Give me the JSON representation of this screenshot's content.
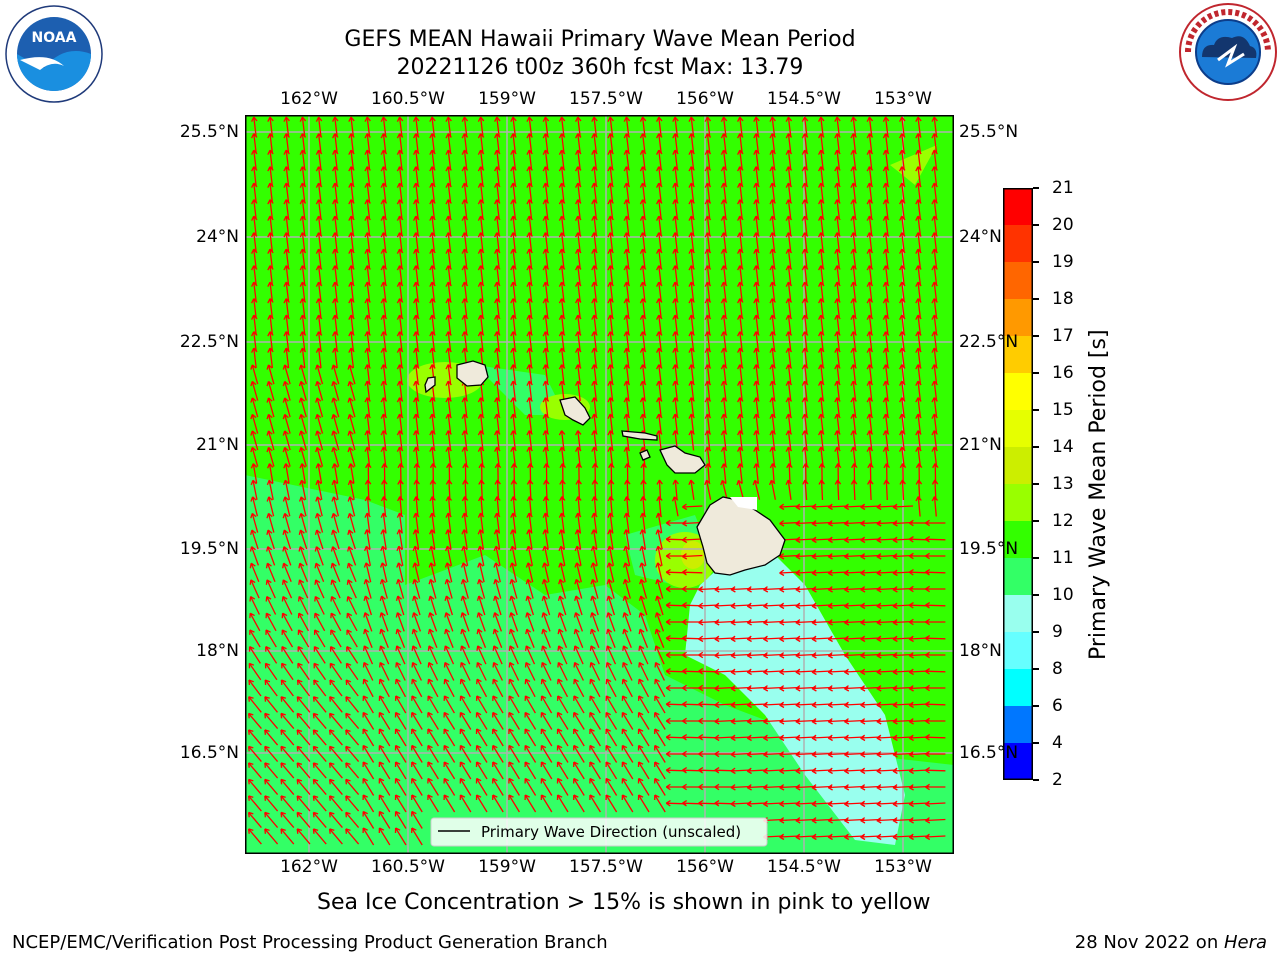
{
  "header": {
    "title_line1": "GEFS MEAN Hawaii Primary Wave Mean Period",
    "title_line2": "20221126 t00z 360h fcst   Max: 13.79"
  },
  "logos": {
    "noaa_text": "NOAA",
    "noaa_ring": "NATIONAL OCEANIC AND ATMOSPHERIC ADMINISTRATION · U.S. DEPARTMENT OF COMMERCE",
    "nws_ring": "NATIONAL WEATHER SERVICE"
  },
  "map": {
    "lon_labels": [
      "162°W",
      "160.5°W",
      "159°W",
      "157.5°W",
      "156°W",
      "154.5°W",
      "153°W"
    ],
    "lat_labels": [
      "25.5°N",
      "24°N",
      "22.5°N",
      "21°N",
      "19.5°N",
      "18°N",
      "16.5°N"
    ],
    "legend_label": "Primary Wave Direction (unscaled)",
    "colors": {
      "land": "#efeadb",
      "arrow": "#ff0000",
      "grid": "#b0b0b0",
      "ocean_main": "#33ff00",
      "ocean_mid": "#33ff66",
      "ocean_low": "#99ffee"
    }
  },
  "colorbar": {
    "label": "Primary Wave Mean Period [s]",
    "ticks": [
      "21",
      "20",
      "19",
      "18",
      "17",
      "16",
      "15",
      "14",
      "13",
      "12",
      "11",
      "10",
      "9",
      "8",
      "6",
      "4",
      "2"
    ],
    "colors": [
      "#ff0000",
      "#ff3300",
      "#ff6600",
      "#ff9900",
      "#ffcc00",
      "#ffff00",
      "#e6ff00",
      "#ccee00",
      "#99ff00",
      "#33ff00",
      "#33ff66",
      "#99ffee",
      "#66ffff",
      "#00ffff",
      "#0077ff",
      "#0000ff"
    ]
  },
  "note": "Sea Ice Concentration > 15% is shown in pink to yellow",
  "footer": {
    "left": "NCEP/EMC/Verification Post Processing Product Generation Branch",
    "right_prefix": "28 Nov 2022 on ",
    "right_host": "Hera"
  }
}
